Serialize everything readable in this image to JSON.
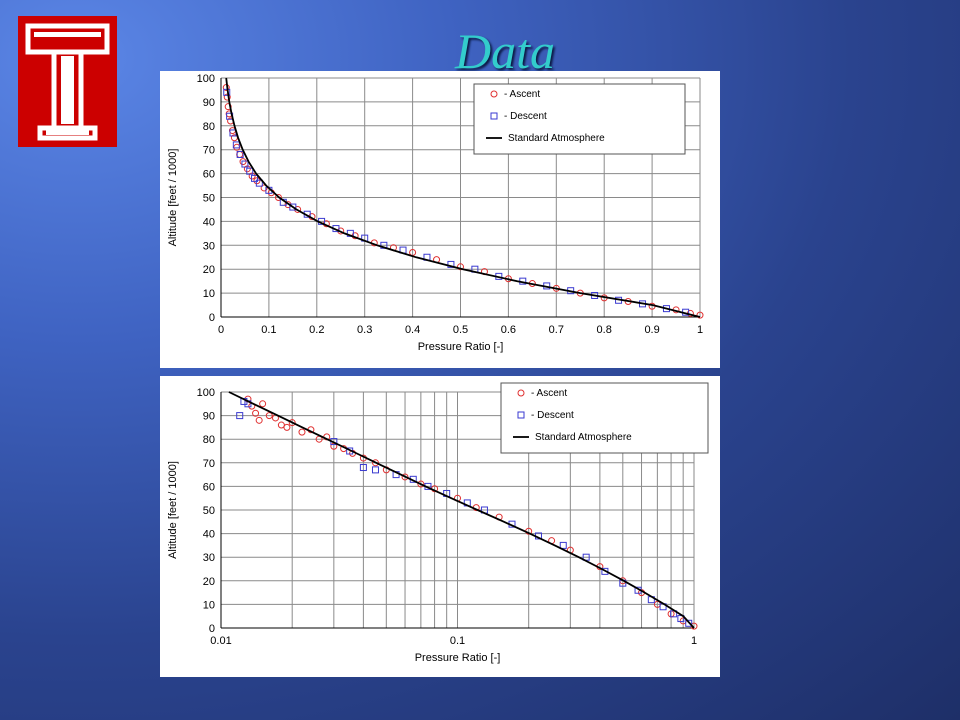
{
  "slide": {
    "title": "Data",
    "colors": {
      "title": "#33cccc",
      "background_light": "#5b86e6",
      "background_dark": "#1e2f68",
      "logo_red": "#cc0000"
    },
    "logo": {
      "icon": "temple-t-icon"
    }
  },
  "chart_data": [
    {
      "type": "scatter",
      "x_scale": "linear",
      "xlim": [
        0,
        1
      ],
      "ylim": [
        0,
        100
      ],
      "x_ticks": [
        0,
        0.1,
        0.2,
        0.3,
        0.4,
        0.5,
        0.6,
        0.7,
        0.8,
        0.9,
        1
      ],
      "x_tick_labels": [
        "0",
        "0.1",
        "0.2",
        "0.3",
        "0.4",
        "0.5",
        "0.6",
        "0.7",
        "0.8",
        "0.9",
        "1"
      ],
      "y_ticks": [
        0,
        10,
        20,
        30,
        40,
        50,
        60,
        70,
        80,
        90,
        100
      ],
      "y_tick_labels": [
        "0",
        "10",
        "20",
        "30",
        "40",
        "50",
        "60",
        "70",
        "80",
        "90",
        "100"
      ],
      "xlabel": "Pressure Ratio [-]",
      "ylabel": "Altitude [feet / 1000]",
      "grid": true,
      "legend_position": "top-right",
      "series": [
        {
          "name": "- Ascent",
          "marker": "circle",
          "color": "#e03030",
          "x": [
            0.011,
            0.013,
            0.015,
            0.017,
            0.02,
            0.024,
            0.028,
            0.033,
            0.039,
            0.046,
            0.055,
            0.065,
            0.075,
            0.09,
            0.105,
            0.12,
            0.14,
            0.16,
            0.19,
            0.22,
            0.25,
            0.28,
            0.32,
            0.36,
            0.4,
            0.45,
            0.5,
            0.55,
            0.6,
            0.65,
            0.7,
            0.75,
            0.8,
            0.85,
            0.9,
            0.95,
            0.98,
            1.0
          ],
          "y": [
            96,
            92,
            88,
            85,
            82,
            78,
            75,
            71,
            68,
            65,
            62,
            59,
            57,
            54,
            52,
            50,
            47,
            45,
            42,
            39,
            36,
            34,
            31,
            29,
            27,
            24,
            21,
            19,
            16,
            14,
            12,
            10,
            8,
            6.5,
            4.5,
            3,
            1.5,
            0.8
          ]
        },
        {
          "name": "- Descent",
          "marker": "square",
          "color": "#3a3ad0",
          "x": [
            0.012,
            0.018,
            0.025,
            0.032,
            0.04,
            0.05,
            0.06,
            0.07,
            0.08,
            0.1,
            0.13,
            0.15,
            0.18,
            0.21,
            0.24,
            0.27,
            0.3,
            0.34,
            0.38,
            0.43,
            0.48,
            0.53,
            0.58,
            0.63,
            0.68,
            0.73,
            0.78,
            0.83,
            0.88,
            0.93,
            0.97
          ],
          "y": [
            94,
            84,
            77,
            72,
            68,
            64,
            61,
            58,
            56,
            53,
            48,
            46,
            43,
            40,
            37,
            35,
            33,
            30,
            28,
            25,
            22,
            20,
            17,
            15,
            13,
            11,
            9,
            7,
            5.5,
            3.5,
            2
          ]
        },
        {
          "name": "Standard Atmosphere",
          "marker": "line",
          "color": "#000000",
          "x": [
            0.0108,
            0.0137,
            0.0174,
            0.0221,
            0.0281,
            0.0357,
            0.0453,
            0.0576,
            0.0733,
            0.0941,
            0.1215,
            0.1572,
            0.2021,
            0.2578,
            0.3258,
            0.4076,
            0.5047,
            0.6185,
            0.7502,
            0.9014,
            1.0
          ],
          "y": [
            100,
            95,
            90,
            85,
            80,
            75,
            70,
            65,
            60,
            55,
            50,
            45,
            40,
            35,
            30,
            25,
            20,
            15,
            10,
            5,
            0
          ]
        }
      ]
    },
    {
      "type": "scatter",
      "x_scale": "log",
      "xlim": [
        0.01,
        1
      ],
      "ylim": [
        0,
        100
      ],
      "x_ticks": [
        0.01,
        0.1,
        1
      ],
      "x_tick_labels": [
        "0.01",
        "0.1",
        "1"
      ],
      "y_ticks": [
        0,
        10,
        20,
        30,
        40,
        50,
        60,
        70,
        80,
        90,
        100
      ],
      "y_tick_labels": [
        "0",
        "10",
        "20",
        "30",
        "40",
        "50",
        "60",
        "70",
        "80",
        "90",
        "100"
      ],
      "xlabel": "Pressure Ratio [-]",
      "ylabel": "Altitude [feet / 1000]",
      "grid": true,
      "legend_position": "top-right",
      "series": [
        {
          "name": "- Ascent",
          "marker": "circle",
          "color": "#e03030",
          "x": [
            0.013,
            0.0135,
            0.014,
            0.0145,
            0.015,
            0.016,
            0.017,
            0.018,
            0.019,
            0.02,
            0.022,
            0.024,
            0.026,
            0.028,
            0.03,
            0.033,
            0.036,
            0.04,
            0.045,
            0.05,
            0.06,
            0.07,
            0.08,
            0.1,
            0.12,
            0.15,
            0.2,
            0.25,
            0.3,
            0.4,
            0.5,
            0.6,
            0.7,
            0.8,
            0.9,
            1.0
          ],
          "y": [
            97,
            94,
            91,
            88,
            95,
            90,
            89,
            86,
            85,
            87,
            83,
            84,
            80,
            81,
            77,
            76,
            74,
            72,
            70,
            67,
            64,
            61,
            59,
            55,
            51,
            47,
            41,
            37,
            33,
            26,
            20,
            15,
            10,
            6,
            3,
            0.8
          ]
        },
        {
          "name": "- Descent",
          "marker": "square",
          "color": "#3a3ad0",
          "x": [
            0.012,
            0.0125,
            0.013,
            0.03,
            0.035,
            0.04,
            0.045,
            0.055,
            0.065,
            0.075,
            0.09,
            0.11,
            0.13,
            0.17,
            0.22,
            0.28,
            0.35,
            0.42,
            0.5,
            0.58,
            0.66,
            0.74,
            0.82,
            0.88,
            0.95
          ],
          "y": [
            90,
            96,
            95,
            79,
            75,
            68,
            67,
            65,
            63,
            60,
            57,
            53,
            50,
            44,
            39,
            35,
            30,
            24,
            19,
            16,
            12,
            9,
            6,
            4,
            2
          ]
        },
        {
          "name": "Standard Atmosphere",
          "marker": "line",
          "color": "#000000",
          "x": [
            0.0108,
            0.0137,
            0.0174,
            0.0221,
            0.0281,
            0.0357,
            0.0453,
            0.0576,
            0.0733,
            0.0941,
            0.1215,
            0.1572,
            0.2021,
            0.2578,
            0.3258,
            0.4076,
            0.5047,
            0.6185,
            0.7502,
            0.9014,
            1.0
          ],
          "y": [
            100,
            95,
            90,
            85,
            80,
            75,
            70,
            65,
            60,
            55,
            50,
            45,
            40,
            35,
            30,
            25,
            20,
            15,
            10,
            5,
            0
          ]
        }
      ]
    }
  ]
}
